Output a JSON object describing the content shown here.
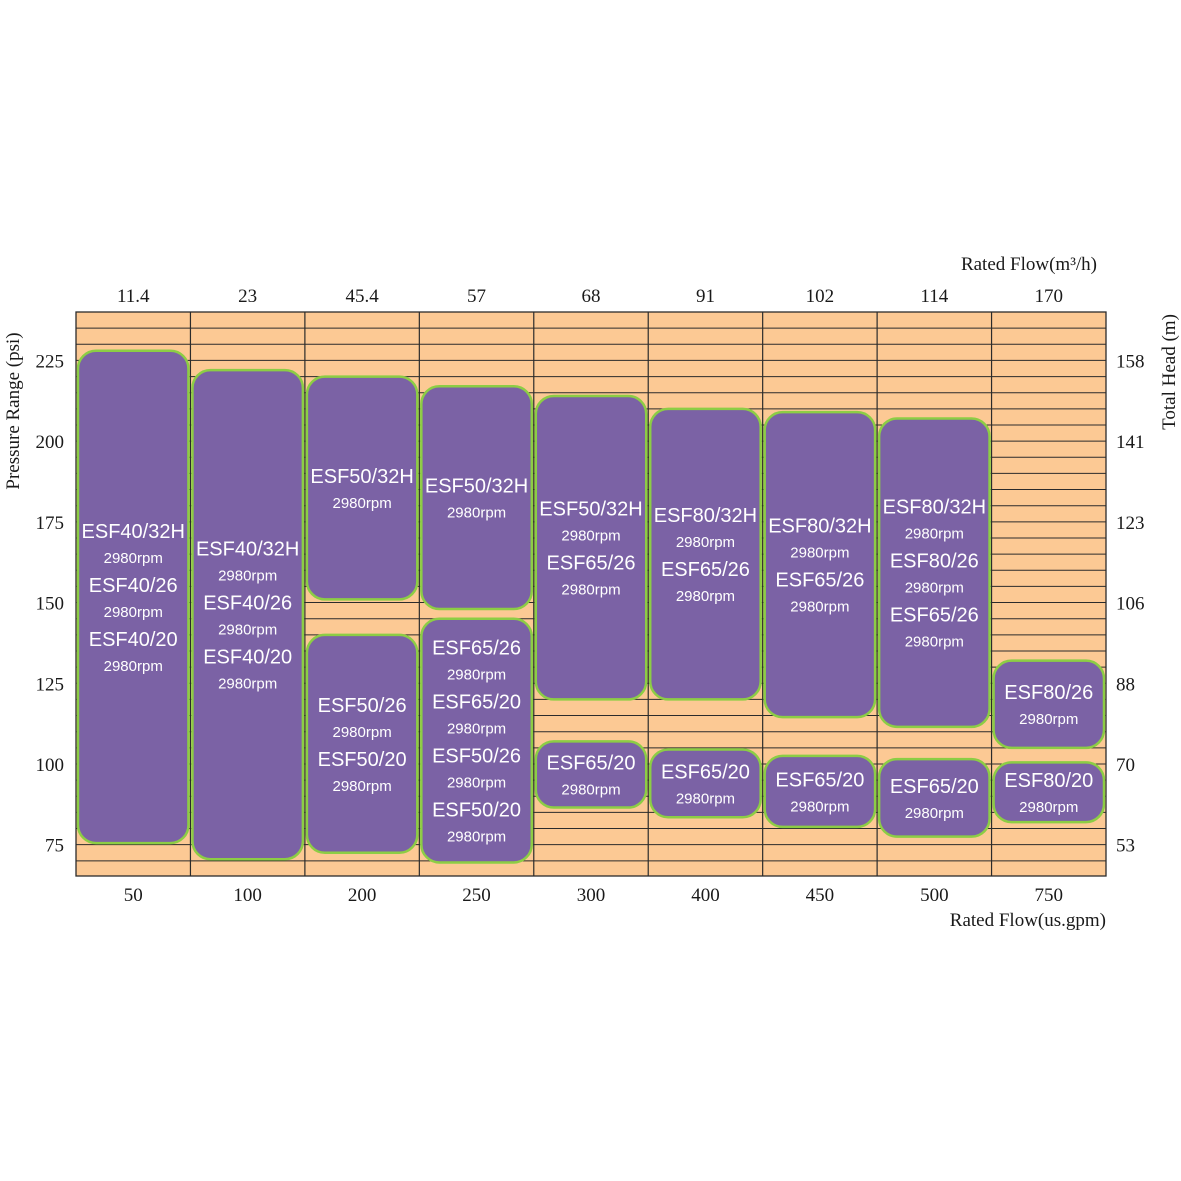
{
  "chart_data": {
    "type": "table",
    "top_axis_label": "Rated Flow(m³/h)",
    "bottom_axis_label": "Rated Flow(us.gpm)",
    "left_axis_label": "Pressure  Range (psi)",
    "right_axis_label": "Total  Head (m)",
    "columns": [
      {
        "flow_m3h": "11.4",
        "flow_usgpm": "50"
      },
      {
        "flow_m3h": "23",
        "flow_usgpm": "100"
      },
      {
        "flow_m3h": "45.4",
        "flow_usgpm": "200"
      },
      {
        "flow_m3h": "57",
        "flow_usgpm": "250"
      },
      {
        "flow_m3h": "68",
        "flow_usgpm": "300"
      },
      {
        "flow_m3h": "91",
        "flow_usgpm": "400"
      },
      {
        "flow_m3h": "102",
        "flow_usgpm": "450"
      },
      {
        "flow_m3h": "114",
        "flow_usgpm": "500"
      },
      {
        "flow_m3h": "170",
        "flow_usgpm": "750"
      }
    ],
    "left_ticks": [
      {
        "psi": 225,
        "label": "225"
      },
      {
        "psi": 200,
        "label": "200"
      },
      {
        "psi": 175,
        "label": "175"
      },
      {
        "psi": 150,
        "label": "150"
      },
      {
        "psi": 125,
        "label": "125"
      },
      {
        "psi": 100,
        "label": "100"
      },
      {
        "psi": 75,
        "label": "75"
      }
    ],
    "right_ticks": [
      {
        "psi": 225,
        "label": "158"
      },
      {
        "psi": 200,
        "label": "141"
      },
      {
        "psi": 175,
        "label": "123"
      },
      {
        "psi": 150,
        "label": "106"
      },
      {
        "psi": 125,
        "label": "88"
      },
      {
        "psi": 100,
        "label": "70"
      },
      {
        "psi": 75,
        "label": "53"
      }
    ],
    "ylim_psi": [
      65.3,
      240
    ],
    "grid": true,
    "colors": {
      "background": "#fcc994",
      "gridline": "#2b2b2b",
      "box_fill": "#7b62a5",
      "box_border": "#8ccd45",
      "box_text": "#ffffff"
    },
    "boxes": [
      {
        "col": 0,
        "psi_top": 228,
        "psi_bottom": 75.5,
        "labels": [
          "ESF40/32H",
          "2980rpm",
          "ESF40/26",
          "2980rpm",
          "ESF40/20",
          "2980rpm"
        ]
      },
      {
        "col": 1,
        "psi_top": 222,
        "psi_bottom": 70.5,
        "labels": [
          "ESF40/32H",
          "2980rpm",
          "ESF40/26",
          "2980rpm",
          "ESF40/20",
          "2980rpm"
        ]
      },
      {
        "col": 2,
        "psi_top": 220,
        "psi_bottom": 151,
        "labels": [
          "ESF50/32H",
          "2980rpm"
        ]
      },
      {
        "col": 2,
        "psi_top": 140,
        "psi_bottom": 72.5,
        "labels": [
          "ESF50/26",
          "2980rpm",
          "ESF50/20",
          "2980rpm"
        ]
      },
      {
        "col": 3,
        "psi_top": 217,
        "psi_bottom": 148,
        "labels": [
          "ESF50/32H",
          "2980rpm"
        ]
      },
      {
        "col": 3,
        "psi_top": 145,
        "psi_bottom": 69.5,
        "labels": [
          "ESF65/26",
          "2980rpm",
          "ESF65/20",
          "2980rpm",
          "ESF50/26",
          "2980rpm",
          "ESF50/20",
          "2980rpm"
        ]
      },
      {
        "col": 4,
        "psi_top": 214,
        "psi_bottom": 120,
        "labels": [
          "ESF50/32H",
          "2980rpm",
          "ESF65/26",
          "2980rpm"
        ]
      },
      {
        "col": 4,
        "psi_top": 107,
        "psi_bottom": 86.5,
        "labels": [
          "ESF65/20",
          "2980rpm"
        ]
      },
      {
        "col": 5,
        "psi_top": 210,
        "psi_bottom": 120,
        "labels": [
          "ESF80/32H",
          "2980rpm",
          "ESF65/26",
          "2980rpm"
        ]
      },
      {
        "col": 5,
        "psi_top": 104.5,
        "psi_bottom": 83.5,
        "labels": [
          "ESF65/20",
          "2980rpm"
        ]
      },
      {
        "col": 6,
        "psi_top": 209,
        "psi_bottom": 114.5,
        "labels": [
          "ESF80/32H",
          "2980rpm",
          "ESF65/26",
          "2980rpm"
        ]
      },
      {
        "col": 6,
        "psi_top": 102.5,
        "psi_bottom": 80.5,
        "labels": [
          "ESF65/20",
          "2980rpm"
        ]
      },
      {
        "col": 7,
        "psi_top": 207,
        "psi_bottom": 111.5,
        "labels": [
          "ESF80/32H",
          "2980rpm",
          "ESF80/26",
          "2980rpm",
          "ESF65/26",
          "2980rpm"
        ]
      },
      {
        "col": 7,
        "psi_top": 101.5,
        "psi_bottom": 77.5,
        "labels": [
          "ESF65/20",
          "2980rpm"
        ]
      },
      {
        "col": 8,
        "psi_top": 132,
        "psi_bottom": 105,
        "labels": [
          "ESF80/26",
          "2980rpm"
        ]
      },
      {
        "col": 8,
        "psi_top": 100.5,
        "psi_bottom": 82,
        "labels": [
          "ESF80/20",
          "2980rpm"
        ]
      }
    ]
  }
}
